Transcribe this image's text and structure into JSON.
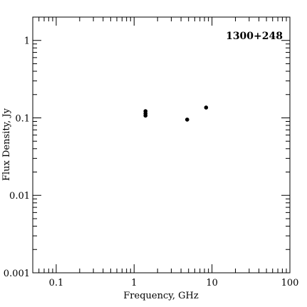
{
  "chart_data": {
    "type": "scatter",
    "title": "",
    "annotation": "1300+248",
    "annotation_position": "top-right",
    "xlabel": "Frequency, GHz",
    "ylabel": "Flux Density, Jy",
    "xscale": "log",
    "yscale": "log",
    "xlim": [
      0.05,
      100
    ],
    "ylim": [
      0.001,
      2
    ],
    "xticks": [
      {
        "value": 0.1,
        "label": "0.1"
      },
      {
        "value": 1,
        "label": "1"
      },
      {
        "value": 10,
        "label": "10"
      },
      {
        "value": 100,
        "label": "100"
      }
    ],
    "yticks": [
      {
        "value": 0.001,
        "label": "0.001"
      },
      {
        "value": 0.01,
        "label": "0.01"
      },
      {
        "value": 0.1,
        "label": "0.1"
      },
      {
        "value": 1,
        "label": "1"
      }
    ],
    "grid": false,
    "series": [
      {
        "points": [
          {
            "x": 1.4,
            "y": 0.122
          },
          {
            "x": 1.4,
            "y": 0.114
          },
          {
            "x": 1.4,
            "y": 0.107
          },
          {
            "x": 4.8,
            "y": 0.095
          },
          {
            "x": 8.4,
            "y": 0.136
          }
        ],
        "color": "#000000"
      }
    ]
  }
}
